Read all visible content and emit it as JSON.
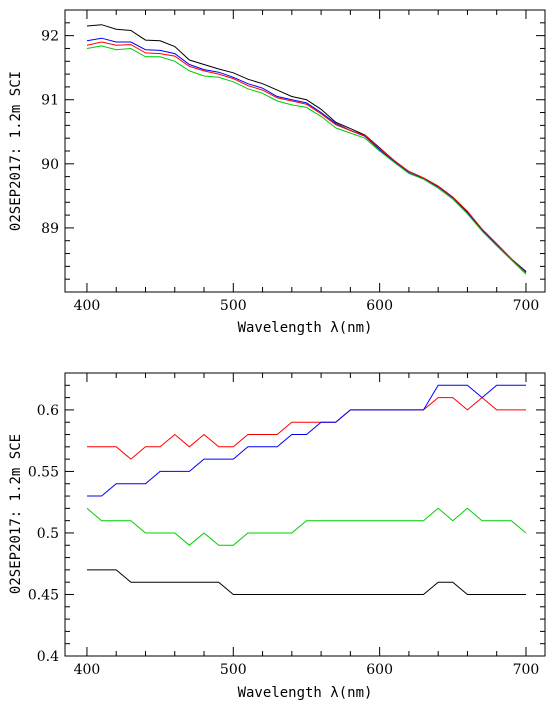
{
  "chart_data": [
    {
      "type": "line",
      "xlabel": "Wavelength λ(nm)",
      "ylabel": "02SEP2017: 1.2m SCI",
      "xlim": [
        385,
        713
      ],
      "ylim": [
        88.0,
        92.4
      ],
      "x_ticks": [
        400,
        500,
        600,
        700
      ],
      "y_ticks": [
        89,
        90,
        91,
        92
      ],
      "x": [
        400,
        410,
        420,
        430,
        440,
        450,
        460,
        470,
        480,
        490,
        500,
        510,
        520,
        530,
        540,
        550,
        560,
        570,
        580,
        590,
        600,
        610,
        620,
        630,
        640,
        650,
        660,
        670,
        680,
        690,
        700
      ],
      "series": [
        {
          "color": "#000000",
          "values": [
            92.15,
            92.17,
            92.1,
            92.08,
            91.93,
            91.92,
            91.83,
            91.62,
            91.55,
            91.48,
            91.42,
            91.32,
            91.25,
            91.15,
            91.05,
            91.0,
            90.85,
            90.65,
            90.55,
            90.45,
            90.25,
            90.05,
            89.88,
            89.78,
            89.65,
            89.48,
            89.25,
            88.98,
            88.75,
            88.52,
            88.32
          ]
        },
        {
          "color": "#0000ff",
          "values": [
            91.92,
            91.96,
            91.9,
            91.9,
            91.78,
            91.77,
            91.72,
            91.55,
            91.47,
            91.43,
            91.35,
            91.25,
            91.18,
            91.05,
            91.0,
            90.95,
            90.8,
            90.63,
            90.52,
            90.43,
            90.22,
            90.03,
            89.86,
            89.77,
            89.64,
            89.47,
            89.24,
            88.96,
            88.74,
            88.51,
            88.31
          ]
        },
        {
          "color": "#ff0000",
          "values": [
            91.85,
            91.9,
            91.85,
            91.86,
            91.73,
            91.72,
            91.68,
            91.52,
            91.45,
            91.4,
            91.33,
            91.22,
            91.15,
            91.03,
            90.98,
            90.93,
            90.78,
            90.61,
            90.52,
            90.44,
            90.24,
            90.05,
            89.88,
            89.78,
            89.65,
            89.48,
            89.26,
            88.98,
            88.75,
            88.52,
            88.3
          ]
        },
        {
          "color": "#00cc00",
          "values": [
            91.8,
            91.84,
            91.78,
            91.8,
            91.67,
            91.67,
            91.6,
            91.45,
            91.37,
            91.35,
            91.28,
            91.17,
            91.1,
            90.98,
            90.92,
            90.88,
            90.74,
            90.56,
            90.48,
            90.4,
            90.2,
            90.02,
            89.85,
            89.76,
            89.62,
            89.45,
            89.22,
            88.95,
            88.72,
            88.5,
            88.28
          ]
        }
      ]
    },
    {
      "type": "line",
      "xlabel": "Wavelength λ(nm)",
      "ylabel": "02SEP2017: 1.2m SCE",
      "xlim": [
        385,
        713
      ],
      "ylim": [
        0.4,
        0.63
      ],
      "x_ticks": [
        400,
        500,
        600,
        700
      ],
      "y_ticks": [
        0.4,
        0.45,
        0.5,
        0.55,
        0.6
      ],
      "x": [
        400,
        410,
        420,
        430,
        440,
        450,
        460,
        470,
        480,
        490,
        500,
        510,
        520,
        530,
        540,
        550,
        560,
        570,
        580,
        590,
        600,
        610,
        620,
        630,
        640,
        650,
        660,
        670,
        680,
        690,
        700
      ],
      "series": [
        {
          "color": "#ff0000",
          "values": [
            0.57,
            0.57,
            0.57,
            0.56,
            0.57,
            0.57,
            0.58,
            0.57,
            0.58,
            0.57,
            0.57,
            0.58,
            0.58,
            0.58,
            0.59,
            0.59,
            0.59,
            0.59,
            0.6,
            0.6,
            0.6,
            0.6,
            0.6,
            0.6,
            0.61,
            0.61,
            0.6,
            0.61,
            0.6,
            0.6,
            0.6
          ]
        },
        {
          "color": "#0000ff",
          "values": [
            0.53,
            0.53,
            0.54,
            0.54,
            0.54,
            0.55,
            0.55,
            0.55,
            0.56,
            0.56,
            0.56,
            0.57,
            0.57,
            0.57,
            0.58,
            0.58,
            0.59,
            0.59,
            0.6,
            0.6,
            0.6,
            0.6,
            0.6,
            0.6,
            0.62,
            0.62,
            0.62,
            0.61,
            0.62,
            0.62,
            0.62
          ]
        },
        {
          "color": "#00cc00",
          "values": [
            0.52,
            0.51,
            0.51,
            0.51,
            0.5,
            0.5,
            0.5,
            0.49,
            0.5,
            0.49,
            0.49,
            0.5,
            0.5,
            0.5,
            0.5,
            0.51,
            0.51,
            0.51,
            0.51,
            0.51,
            0.51,
            0.51,
            0.51,
            0.51,
            0.52,
            0.51,
            0.52,
            0.51,
            0.51,
            0.51,
            0.5
          ]
        },
        {
          "color": "#000000",
          "values": [
            0.47,
            0.47,
            0.47,
            0.46,
            0.46,
            0.46,
            0.46,
            0.46,
            0.46,
            0.46,
            0.45,
            0.45,
            0.45,
            0.45,
            0.45,
            0.45,
            0.45,
            0.45,
            0.45,
            0.45,
            0.45,
            0.45,
            0.45,
            0.45,
            0.46,
            0.46,
            0.45,
            0.45,
            0.45,
            0.45,
            0.45
          ]
        }
      ]
    }
  ]
}
